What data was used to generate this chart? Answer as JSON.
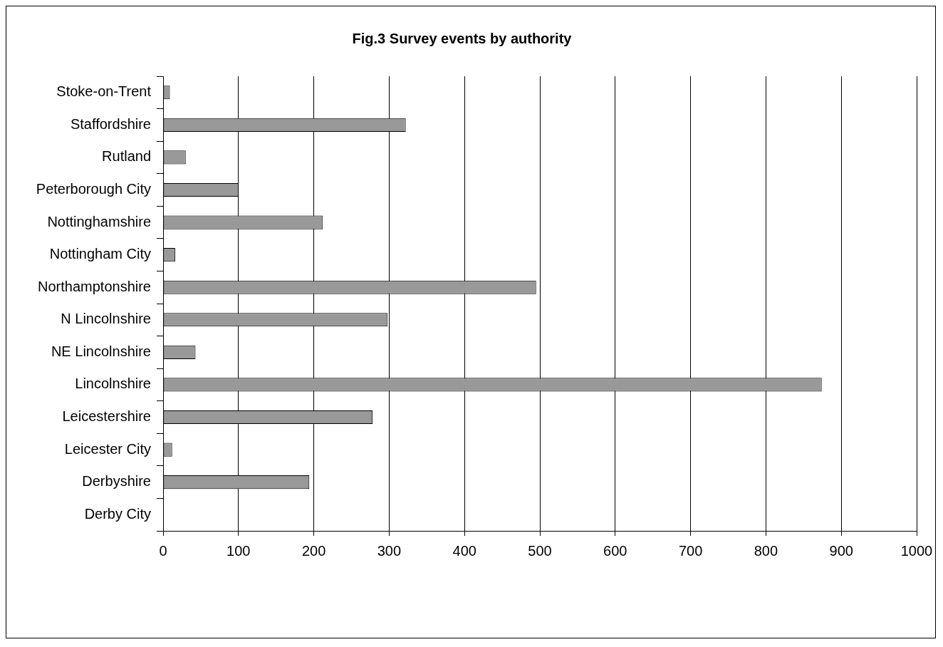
{
  "chart_data": {
    "type": "bar",
    "orientation": "horizontal",
    "title": "Fig.3 Survey events by authority",
    "categories": [
      "Stoke-on-Trent",
      "Staffordshire",
      "Rutland",
      "Peterborough City",
      "Nottinghamshire",
      "Nottingham City",
      "Northamptonshire",
      "N Lincolnshire",
      "NE Lincolnshire",
      "Lincolnshire",
      "Leicestershire",
      "Leicester City",
      "Derbyshire",
      "Derby City"
    ],
    "values": [
      9,
      322,
      30,
      100,
      212,
      16,
      495,
      298,
      43,
      874,
      278,
      12,
      194,
      0
    ],
    "color": "#999999",
    "xlim": [
      0,
      1000
    ],
    "xticks": [
      0,
      100,
      200,
      300,
      400,
      500,
      600,
      700,
      800,
      900,
      1000
    ],
    "grid": "x"
  }
}
